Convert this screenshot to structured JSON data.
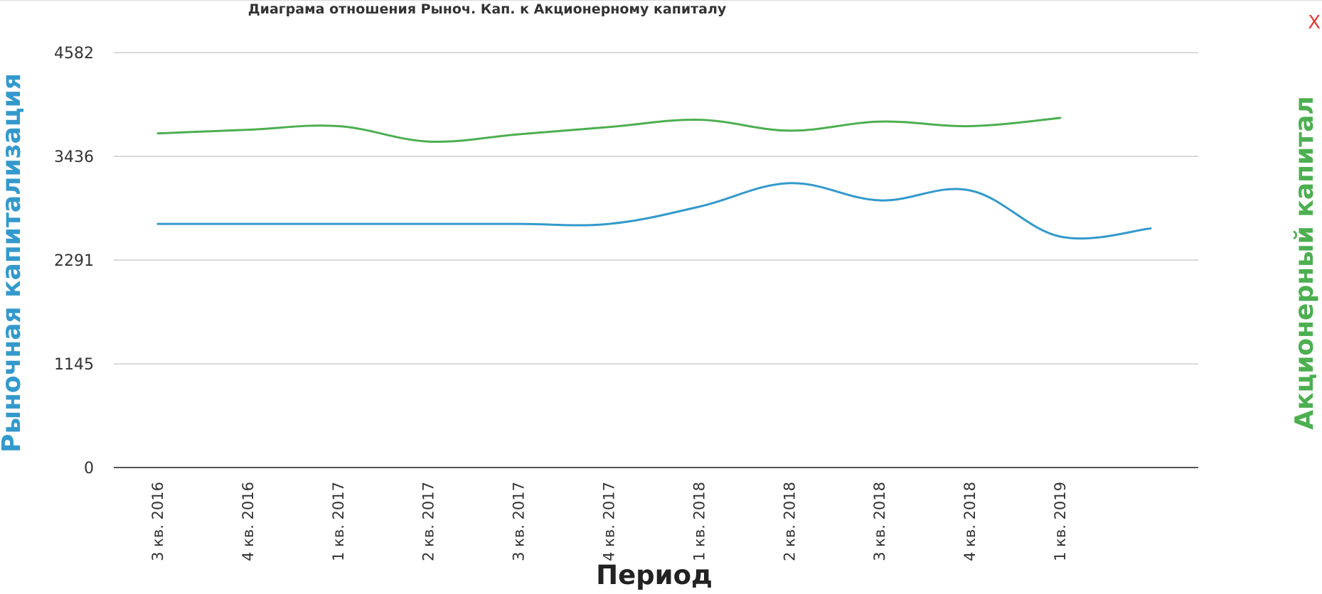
{
  "close_label": "X",
  "chart_data": {
    "type": "line",
    "title": "Диаграма отношения Рыноч. Кап. к Акционерному капиталу",
    "xlabel": "Период",
    "ylabel_left": "Рыночная капитализация",
    "ylabel_right": "Акционерный капитал",
    "categories": [
      "3 кв. 2016",
      "4 кв. 2016",
      "1 кв. 2017",
      "2 кв. 2017",
      "3 кв. 2017",
      "4 кв. 2017",
      "1 кв. 2018",
      "2 кв. 2018",
      "3 кв. 2018",
      "4 кв. 2018",
      "1 кв. 2019",
      ""
    ],
    "y_ticks": [
      "0",
      "1145",
      "2291",
      "3436",
      "4582"
    ],
    "ylim": [
      0,
      4582
    ],
    "grid": true,
    "series": [
      {
        "name": "Рыночная капитализация",
        "color": "#3399cc",
        "values": [
          2690,
          2690,
          2690,
          2690,
          2690,
          2690,
          2880,
          3140,
          2950,
          3060,
          2550,
          2640
        ]
      },
      {
        "name": "Акционерный капитал",
        "color": "#4caf50",
        "values": [
          3690,
          3730,
          3770,
          3600,
          3680,
          3760,
          3840,
          3720,
          3820,
          3770,
          3860,
          null
        ]
      }
    ]
  }
}
